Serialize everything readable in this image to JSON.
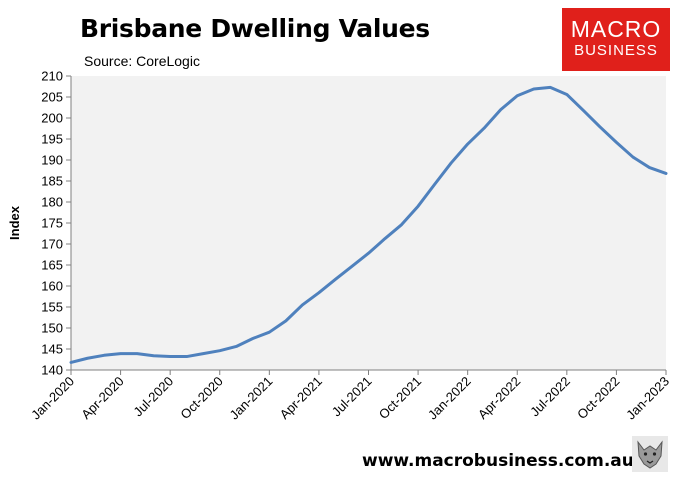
{
  "header": {
    "title": "Brisbane Dwelling Values",
    "source": "Source: CoreLogic"
  },
  "logo": {
    "line1": "MACRO",
    "line2": "BUSINESS",
    "bg_color": "#e0201b",
    "icon": "wolf-icon"
  },
  "footer": {
    "url": "www.macrobusiness.com.au"
  },
  "chart_data": {
    "type": "line",
    "title": "Brisbane Dwelling Values",
    "subtitle": "Source: CoreLogic",
    "xlabel": "",
    "ylabel": "Index",
    "ylim": [
      140,
      210
    ],
    "yticks": [
      140,
      145,
      150,
      155,
      160,
      165,
      170,
      175,
      180,
      185,
      190,
      195,
      200,
      205,
      210
    ],
    "xtick_labels": [
      "Jan-2020",
      "Apr-2020",
      "Jul-2020",
      "Oct-2020",
      "Jan-2021",
      "Apr-2021",
      "Jul-2021",
      "Oct-2021",
      "Jan-2022",
      "Apr-2022",
      "Jul-2022",
      "Oct-2022",
      "Jan-2023"
    ],
    "grid": false,
    "legend": "none",
    "plot_bg": "#f2f2f2",
    "line_color": "#4f81bd",
    "series": [
      {
        "x": [
          "Jan-2020",
          "Feb-2020",
          "Mar-2020",
          "Apr-2020",
          "May-2020",
          "Jun-2020",
          "Jul-2020",
          "Aug-2020",
          "Sep-2020",
          "Oct-2020",
          "Nov-2020",
          "Dec-2020",
          "Jan-2021",
          "Feb-2021",
          "Mar-2021",
          "Apr-2021",
          "May-2021",
          "Jun-2021",
          "Jul-2021",
          "Aug-2021",
          "Sep-2021",
          "Oct-2021",
          "Nov-2021",
          "Dec-2021",
          "Jan-2022",
          "Feb-2022",
          "Mar-2022",
          "Apr-2022",
          "May-2022",
          "Jun-2022",
          "Jul-2022",
          "Aug-2022",
          "Sep-2022",
          "Oct-2022",
          "Nov-2022",
          "Dec-2022",
          "Jan-2023"
        ],
        "values": [
          141.8,
          142.8,
          143.5,
          143.9,
          143.9,
          143.4,
          143.2,
          143.2,
          143.9,
          144.6,
          145.6,
          147.5,
          149.0,
          151.7,
          155.5,
          158.4,
          161.6,
          164.7,
          167.8,
          171.3,
          174.6,
          179.0,
          184.2,
          189.3,
          193.8,
          197.6,
          202.0,
          205.3,
          206.9,
          207.3,
          205.6,
          201.8,
          197.9,
          194.2,
          190.7,
          188.2,
          186.8
        ]
      }
    ]
  }
}
